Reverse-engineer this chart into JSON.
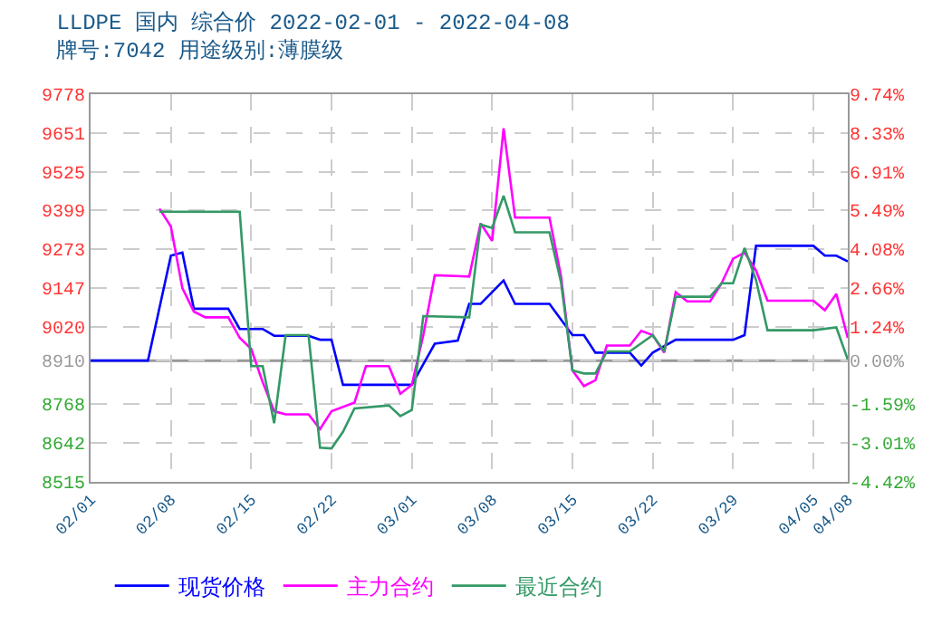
{
  "chart_data": {
    "type": "line",
    "title": "LLDPE 国内 综合价 2022-02-01 - 2022-04-08",
    "subtitle": "牌号:7042 用途级别:薄膜级",
    "xlim": [
      "2022-02-01",
      "2022-04-08"
    ],
    "xticks": [
      {
        "value": "2022-02-01",
        "label": "02/01"
      },
      {
        "value": "2022-02-08",
        "label": "02/08"
      },
      {
        "value": "2022-02-15",
        "label": "02/15"
      },
      {
        "value": "2022-02-22",
        "label": "02/22"
      },
      {
        "value": "2022-03-01",
        "label": "03/01"
      },
      {
        "value": "2022-03-08",
        "label": "03/08"
      },
      {
        "value": "2022-03-15",
        "label": "03/15"
      },
      {
        "value": "2022-03-22",
        "label": "03/22"
      },
      {
        "value": "2022-03-29",
        "label": "03/29"
      },
      {
        "value": "2022-04-05",
        "label": "04/05"
      },
      {
        "value": "2022-04-08",
        "label": "04/08"
      }
    ],
    "ylim": [
      8515,
      9778
    ],
    "yticks": [
      8515,
      8642,
      8768,
      8910,
      9020,
      9147,
      9273,
      9399,
      9525,
      9651,
      9778
    ],
    "y2lim": [
      -4.42,
      9.74
    ],
    "y2ticks": [
      {
        "value": -4.42,
        "label": "-4.42%"
      },
      {
        "value": -3.01,
        "label": "-3.01%"
      },
      {
        "value": -1.59,
        "label": "-1.59%"
      },
      {
        "value": 0,
        "label": "0.00%"
      },
      {
        "value": 1.24,
        "label": "1.24%"
      },
      {
        "value": 2.66,
        "label": "2.66%"
      },
      {
        "value": 4.08,
        "label": "4.08%"
      },
      {
        "value": 5.49,
        "label": "5.49%"
      },
      {
        "value": 6.91,
        "label": "6.91%"
      },
      {
        "value": 8.33,
        "label": "8.33%"
      },
      {
        "value": 9.74,
        "label": "9.74%"
      }
    ],
    "grid": true,
    "legend": "bottom",
    "marker": "none",
    "line_style": "solid",
    "ref_lines": [
      {
        "axis": "y",
        "value": 8910,
        "color": "#999999"
      }
    ],
    "series": [
      {
        "name": "现货价格",
        "color": "#0000ff",
        "x": [
          "2022-02-01",
          "2022-02-06",
          "2022-02-08",
          "2022-02-09",
          "2022-02-10",
          "2022-02-13",
          "2022-02-14",
          "2022-02-16",
          "2022-02-17",
          "2022-02-20",
          "2022-02-21",
          "2022-02-22",
          "2022-02-23",
          "2022-03-01",
          "2022-03-02",
          "2022-03-03",
          "2022-03-05",
          "2022-03-06",
          "2022-03-07",
          "2022-03-09",
          "2022-03-10",
          "2022-03-13",
          "2022-03-15",
          "2022-03-16",
          "2022-03-17",
          "2022-03-20",
          "2022-03-21",
          "2022-03-22",
          "2022-03-24",
          "2022-03-29",
          "2022-03-30",
          "2022-03-31",
          "2022-04-05",
          "2022-04-06",
          "2022-04-07",
          "2022-04-08"
        ],
        "values": [
          8910,
          8910,
          9252,
          9262,
          9079,
          9079,
          9013,
          9013,
          8991,
          8991,
          8978,
          8978,
          8831,
          8831,
          8898,
          8965,
          8975,
          9095,
          9095,
          9171,
          9095,
          9095,
          8993,
          8993,
          8936,
          8936,
          8894,
          8936,
          8978,
          8978,
          8993,
          9284,
          9284,
          9252,
          9252,
          9233
        ]
      },
      {
        "name": "主力合约",
        "color": "#ff00ff",
        "x": [
          "2022-02-07",
          "2022-02-08",
          "2022-02-09",
          "2022-02-10",
          "2022-02-11",
          "2022-02-13",
          "2022-02-14",
          "2022-02-15",
          "2022-02-16",
          "2022-02-17",
          "2022-02-18",
          "2022-02-20",
          "2022-02-21",
          "2022-02-22",
          "2022-02-24",
          "2022-02-25",
          "2022-02-27",
          "2022-02-28",
          "2022-03-01",
          "2022-03-02",
          "2022-03-03",
          "2022-03-06",
          "2022-03-07",
          "2022-03-08",
          "2022-03-09",
          "2022-03-10",
          "2022-03-13",
          "2022-03-14",
          "2022-03-15",
          "2022-03-16",
          "2022-03-17",
          "2022-03-18",
          "2022-03-20",
          "2022-03-21",
          "2022-03-22",
          "2022-03-23",
          "2022-03-24",
          "2022-03-25",
          "2022-03-27",
          "2022-03-28",
          "2022-03-29",
          "2022-03-30",
          "2022-03-31",
          "2022-04-01",
          "2022-04-05",
          "2022-04-06",
          "2022-04-07",
          "2022-04-08"
        ],
        "values": [
          9405,
          9347,
          9146,
          9070,
          9051,
          9051,
          8984,
          8948,
          8840,
          8745,
          8735,
          8735,
          8687,
          8745,
          8773,
          8892,
          8892,
          8802,
          8831,
          8993,
          9188,
          9184,
          9357,
          9300,
          9667,
          9376,
          9376,
          9185,
          8878,
          8827,
          8846,
          8959,
          8959,
          9007,
          8993,
          8936,
          9133,
          9103,
          9103,
          9162,
          9242,
          9262,
          9204,
          9105,
          9105,
          9074,
          9127,
          8984
        ]
      },
      {
        "name": "最近合约",
        "color": "#339966",
        "x": [
          "2022-02-07",
          "2022-02-14",
          "2022-02-15",
          "2022-02-16",
          "2022-02-17",
          "2022-02-18",
          "2022-02-20",
          "2022-02-21",
          "2022-02-22",
          "2022-02-23",
          "2022-02-24",
          "2022-02-27",
          "2022-02-28",
          "2022-03-01",
          "2022-03-02",
          "2022-03-06",
          "2022-03-07",
          "2022-03-08",
          "2022-03-09",
          "2022-03-10",
          "2022-03-13",
          "2022-03-14",
          "2022-03-15",
          "2022-03-16",
          "2022-03-17",
          "2022-03-18",
          "2022-03-20",
          "2022-03-22",
          "2022-03-23",
          "2022-03-24",
          "2022-03-27",
          "2022-03-28",
          "2022-03-29",
          "2022-03-30",
          "2022-03-31",
          "2022-04-01",
          "2022-04-05",
          "2022-04-07",
          "2022-04-08"
        ],
        "values": [
          9395,
          9395,
          8892,
          8892,
          8706,
          8993,
          8993,
          8626,
          8624,
          8678,
          8754,
          8764,
          8729,
          8749,
          9055,
          9051,
          9353,
          9342,
          9447,
          9328,
          9328,
          9166,
          8878,
          8868,
          8868,
          8940,
          8940,
          8993,
          8940,
          9118,
          9118,
          9162,
          9162,
          9277,
          9173,
          9009,
          9009,
          9018,
          8913
        ]
      }
    ]
  }
}
